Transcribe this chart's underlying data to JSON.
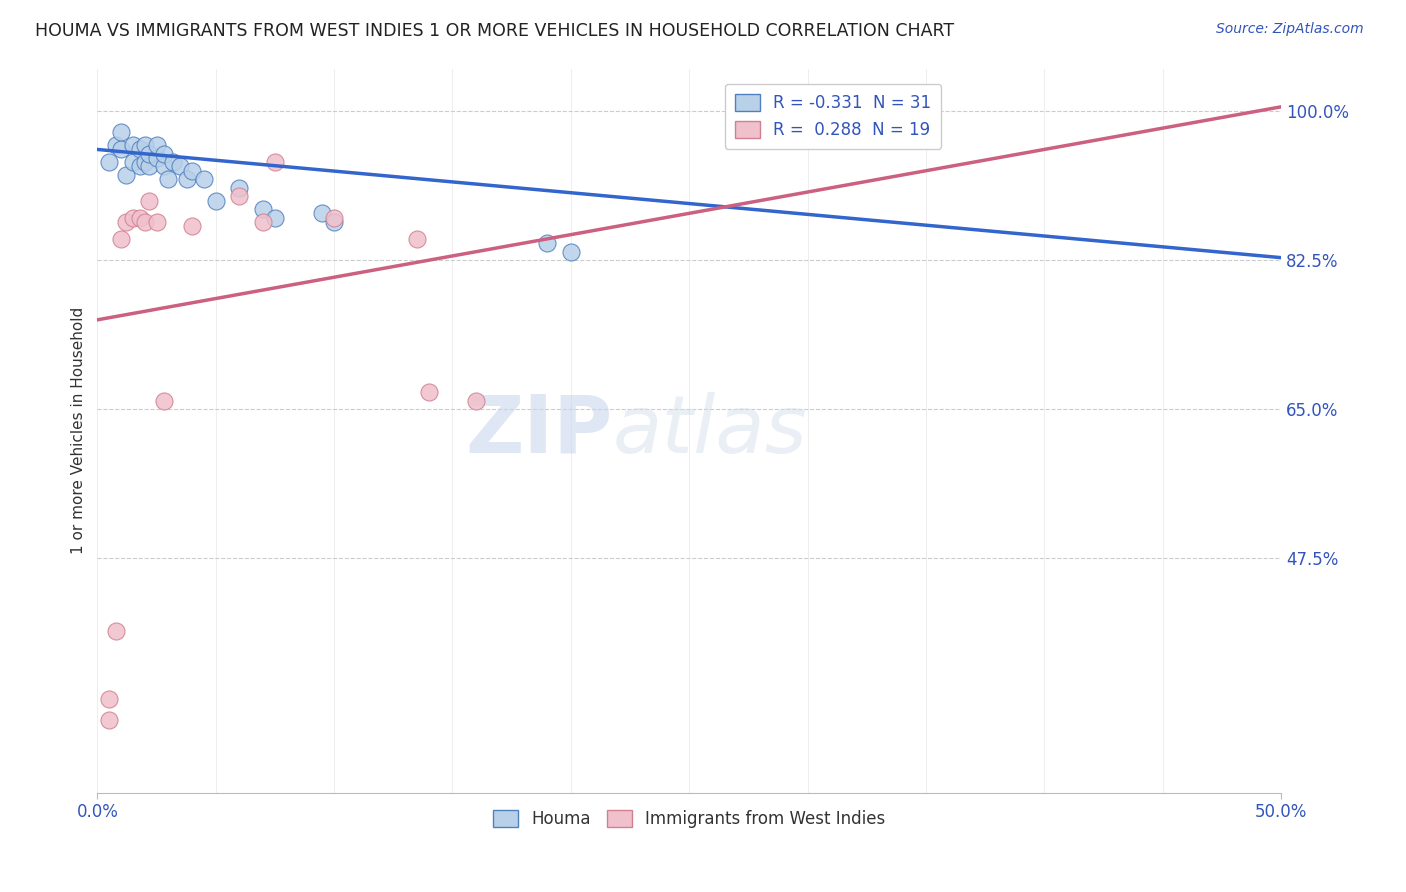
{
  "title": "HOUMA VS IMMIGRANTS FROM WEST INDIES 1 OR MORE VEHICLES IN HOUSEHOLD CORRELATION CHART",
  "source_text": "Source: ZipAtlas.com",
  "ylabel": "1 or more Vehicles in Household",
  "xlim": [
    0.0,
    0.5
  ],
  "ylim": [
    0.2,
    1.05
  ],
  "yticks": [
    0.475,
    0.65,
    0.825,
    1.0
  ],
  "ytick_labels": [
    "47.5%",
    "65.0%",
    "82.5%",
    "100.0%"
  ],
  "xtick_labels": [
    "0.0%",
    "50.0%"
  ],
  "xticks": [
    0.0,
    0.5
  ],
  "houma_R": -0.331,
  "houma_N": 31,
  "west_indies_R": 0.288,
  "west_indies_N": 19,
  "houma_color": "#b8d0e8",
  "houma_edge_color": "#5080c0",
  "houma_line_color": "#3366cc",
  "west_indies_color": "#f0c0cc",
  "west_indies_edge_color": "#d08090",
  "west_indies_line_color": "#cc6080",
  "legend_label_houma": "Houma",
  "legend_label_west_indies": "Immigrants from West Indies",
  "watermark_zip": "ZIP",
  "watermark_atlas": "atlas",
  "background_color": "#ffffff",
  "grid_color": "#cccccc",
  "houma_scatter_x": [
    0.005,
    0.008,
    0.01,
    0.01,
    0.012,
    0.015,
    0.015,
    0.018,
    0.018,
    0.02,
    0.02,
    0.022,
    0.022,
    0.025,
    0.025,
    0.028,
    0.028,
    0.03,
    0.032,
    0.035,
    0.038,
    0.04,
    0.045,
    0.05,
    0.06,
    0.07,
    0.075,
    0.095,
    0.1,
    0.19,
    0.2
  ],
  "houma_scatter_y": [
    0.94,
    0.96,
    0.955,
    0.975,
    0.925,
    0.94,
    0.96,
    0.935,
    0.955,
    0.94,
    0.96,
    0.935,
    0.95,
    0.945,
    0.96,
    0.935,
    0.95,
    0.92,
    0.94,
    0.935,
    0.92,
    0.93,
    0.92,
    0.895,
    0.91,
    0.885,
    0.875,
    0.88,
    0.87,
    0.845,
    0.835
  ],
  "west_indies_scatter_x": [
    0.005,
    0.005,
    0.008,
    0.01,
    0.012,
    0.015,
    0.018,
    0.02,
    0.022,
    0.025,
    0.028,
    0.04,
    0.06,
    0.07,
    0.075,
    0.1,
    0.135,
    0.14,
    0.16
  ],
  "west_indies_scatter_y": [
    0.31,
    0.285,
    0.39,
    0.85,
    0.87,
    0.875,
    0.875,
    0.87,
    0.895,
    0.87,
    0.66,
    0.865,
    0.9,
    0.87,
    0.94,
    0.875,
    0.85,
    0.67,
    0.66
  ],
  "houma_line_x0": 0.0,
  "houma_line_y0": 0.955,
  "houma_line_x1": 0.5,
  "houma_line_y1": 0.828,
  "wi_line_x0": 0.0,
  "wi_line_y0": 0.755,
  "wi_line_x1": 0.5,
  "wi_line_y1": 1.005
}
